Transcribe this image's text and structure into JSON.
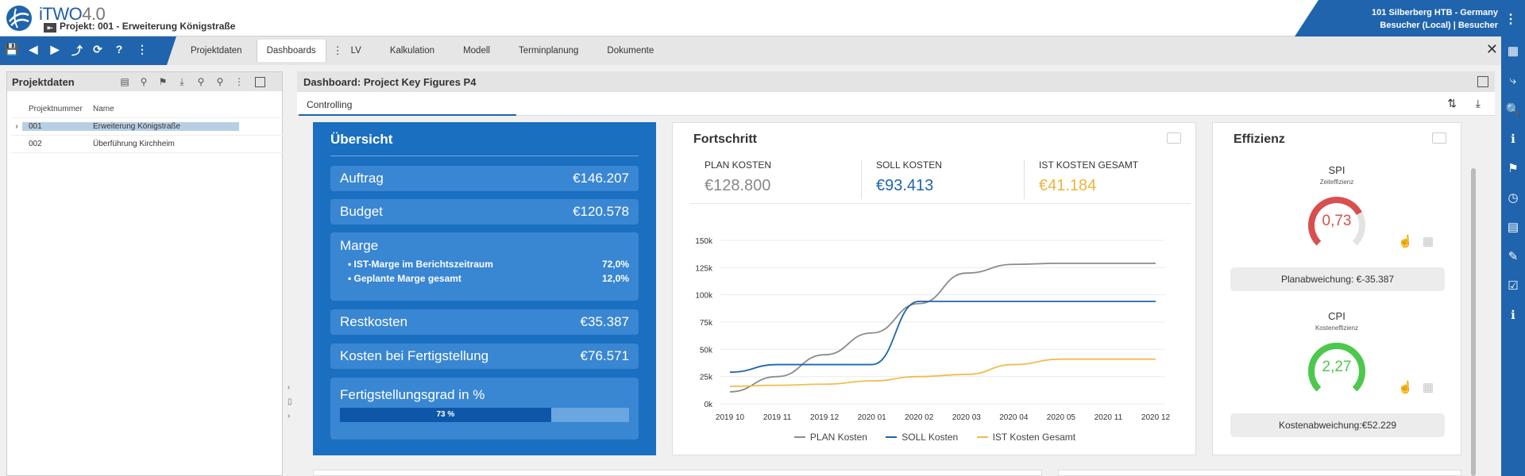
{
  "app": {
    "brand": "iTWO",
    "version": "4.0",
    "project_pin": "⇤",
    "project_line": "Projekt: 001 - Erweiterung Königstraße",
    "user_line1": "101 Silberberg HTB - Germany",
    "user_line2": "Besucher (Local) | Besucher",
    "menu_dots": "⋮"
  },
  "toolbar": {
    "icons": [
      "💾",
      "◀",
      "▶",
      "⤴",
      "⟳",
      "?",
      "⋮"
    ],
    "tabs": [
      "Projektdaten",
      "Dashboards",
      "LV",
      "Kalkulation",
      "Modell",
      "Terminplanung",
      "Dokumente"
    ],
    "tab_menu": "⋮",
    "close": "✕"
  },
  "right_sidebar_icons": [
    "▦",
    "⤷",
    "🔍",
    "ℹ",
    "⚑",
    "◷",
    "▤",
    "✎",
    "☑",
    "ℹ"
  ],
  "left_panel": {
    "title": "Projektdaten",
    "tool_icons": [
      "▤",
      "⚲",
      "⚑",
      "⤓",
      "⚲",
      "⚲",
      "⋮"
    ],
    "columns": [
      "Projektnummer",
      "Name"
    ],
    "rows": [
      {
        "arrow": "›",
        "nr": "001",
        "name": "Erweiterung Königstraße"
      },
      {
        "arrow": "",
        "nr": "002",
        "name": "Überführung Kirchheim"
      }
    ],
    "gutter": [
      "‹",
      "▯",
      "›"
    ]
  },
  "dashboard": {
    "title": "Dashboard: Project Key Figures P4",
    "subtab": "Controlling",
    "sub_icons": "⇅ ⤓"
  },
  "overview": {
    "title": "Übersicht",
    "auftrag_label": "Auftrag",
    "auftrag_value": "€146.207",
    "budget_label": "Budget",
    "budget_value": "€120.578",
    "marge_label": "Marge",
    "marge_items": [
      {
        "label": "• IST-Marge im Berichtszeitraum",
        "value": "72,0%"
      },
      {
        "label": "• Geplante Marge gesamt",
        "value": "12,0%"
      }
    ],
    "rest_label": "Restkosten",
    "rest_value": "€35.387",
    "kbf_label": "Kosten bei Fertigstellung",
    "kbf_value": "€76.571",
    "fg_label": "Fertigstellungsgrad in %",
    "fg_value": 73,
    "fg_text": "73 %"
  },
  "fortschritt": {
    "title": "Fortschritt",
    "kpis": [
      {
        "label": "PLAN KOSTEN",
        "value": "€128.800",
        "color": "#888888"
      },
      {
        "label": "SOLL KOSTEN",
        "value": "€93.413",
        "color": "#1f64ad"
      },
      {
        "label": "IST KOSTEN GESAMT",
        "value": "€41.184",
        "color": "#f0b33c"
      }
    ]
  },
  "effizienz": {
    "title": "Effizienz",
    "spi_title": "SPI",
    "spi_sub": "Zeiteffizienz",
    "spi_value": "0,73",
    "spi_fraction": 0.73,
    "spi_color": "#d94f4f",
    "plan_dev": "Planabweichung: €-35.387",
    "cpi_title": "CPI",
    "cpi_sub": "Kosteneffizienz",
    "cpi_value": "2,27",
    "cpi_fraction": 1,
    "cpi_color": "#4cc84c",
    "cost_dev": "Kostenabweichung:€52.229",
    "icon_tap": "☝",
    "icon_grid": "▦"
  },
  "chart_data": {
    "type": "line",
    "title": "",
    "xlabel": "",
    "ylabel": "",
    "categories": [
      "2019 10",
      "2019 11",
      "2019 12",
      "2020 01",
      "2020 02",
      "2020 03",
      "2020 04",
      "2020 05",
      "2020 11",
      "2020 12"
    ],
    "ylim": [
      0,
      150000
    ],
    "yticks": [
      "0k",
      "25k",
      "50k",
      "75k",
      "100k",
      "125k",
      "150k"
    ],
    "grid": true,
    "legend_position": "bottom",
    "series": [
      {
        "name": "PLAN Kosten",
        "color": "#8a8a8a",
        "values": [
          11000,
          25000,
          45000,
          65000,
          92000,
          120000,
          128000,
          129000,
          129000,
          129000
        ]
      },
      {
        "name": "SOLL Kosten",
        "color": "#1f64ad",
        "values": [
          29000,
          36000,
          36000,
          36000,
          94000,
          94000,
          94000,
          94000,
          94000,
          94000
        ]
      },
      {
        "name": "IST Kosten Gesamt",
        "color": "#f0bd4c",
        "values": [
          16000,
          17000,
          18000,
          21000,
          25000,
          27000,
          36000,
          41000,
          41000,
          41000
        ]
      }
    ]
  }
}
